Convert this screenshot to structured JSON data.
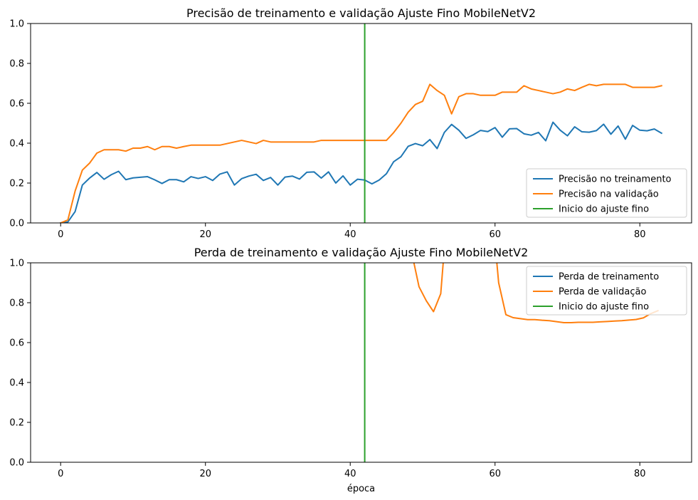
{
  "chart_data": [
    {
      "type": "line",
      "title": "Precisão de treinamento e validação Ajuste Fino MobileNetV2",
      "xlabel": "",
      "ylabel": "",
      "xlim": [
        -4.15,
        87.15
      ],
      "ylim": [
        0,
        1
      ],
      "xticks": [
        0,
        20,
        40,
        60,
        80
      ],
      "yticks": [
        0.0,
        0.2,
        0.4,
        0.6,
        0.8,
        1.0
      ],
      "xtick_labels": [
        "0",
        "20",
        "40",
        "60",
        "80"
      ],
      "ytick_labels": [
        "0.0",
        "0.2",
        "0.4",
        "0.6",
        "0.8",
        "1.0"
      ],
      "legend_position": "lower-right",
      "grid": false,
      "series": [
        {
          "name": "Precisão no treinamento",
          "color": "#1f77b4",
          "values": [
            0.0,
            0.005,
            0.057,
            0.19,
            0.225,
            0.253,
            0.219,
            0.242,
            0.259,
            0.217,
            0.226,
            0.229,
            0.232,
            0.216,
            0.198,
            0.217,
            0.217,
            0.206,
            0.232,
            0.223,
            0.232,
            0.213,
            0.245,
            0.256,
            0.19,
            0.222,
            0.235,
            0.244,
            0.213,
            0.228,
            0.19,
            0.23,
            0.235,
            0.22,
            0.254,
            0.256,
            0.225,
            0.256,
            0.2,
            0.236,
            0.19,
            0.219,
            0.215,
            0.196,
            0.215,
            0.247,
            0.307,
            0.332,
            0.384,
            0.398,
            0.387,
            0.418,
            0.373,
            0.454,
            0.494,
            0.465,
            0.424,
            0.442,
            0.464,
            0.458,
            0.478,
            0.43,
            0.472,
            0.473,
            0.447,
            0.44,
            0.454,
            0.412,
            0.505,
            0.465,
            0.437,
            0.482,
            0.457,
            0.455,
            0.463,
            0.495,
            0.445,
            0.486,
            0.42,
            0.489,
            0.465,
            0.462,
            0.471,
            0.45
          ]
        },
        {
          "name": "Precisão na validação",
          "color": "#ff7f0e",
          "values": [
            0.0,
            0.015,
            0.16,
            0.265,
            0.3,
            0.35,
            0.367,
            0.367,
            0.367,
            0.36,
            0.375,
            0.375,
            0.383,
            0.367,
            0.383,
            0.383,
            0.375,
            0.383,
            0.39,
            0.39,
            0.39,
            0.39,
            0.39,
            0.398,
            0.406,
            0.414,
            0.406,
            0.398,
            0.414,
            0.406,
            0.406,
            0.406,
            0.406,
            0.406,
            0.406,
            0.406,
            0.414,
            0.414,
            0.414,
            0.414,
            0.414,
            0.414,
            0.414,
            0.414,
            0.414,
            0.414,
            0.453,
            0.5,
            0.555,
            0.594,
            0.61,
            0.695,
            0.664,
            0.64,
            0.547,
            0.633,
            0.648,
            0.648,
            0.64,
            0.64,
            0.64,
            0.656,
            0.656,
            0.656,
            0.688,
            0.672,
            0.664,
            0.656,
            0.648,
            0.656,
            0.672,
            0.664,
            0.68,
            0.695,
            0.688,
            0.695,
            0.695,
            0.695,
            0.695,
            0.68,
            0.68,
            0.68,
            0.68,
            0.688
          ]
        },
        {
          "name": "Inicio do ajuste fino",
          "color": "#2ca02c",
          "x": [
            42,
            42
          ],
          "y": [
            0,
            1
          ]
        }
      ]
    },
    {
      "type": "line",
      "title": "Perda de treinamento e validação Ajuste Fino MobileNetV2",
      "xlabel": "época",
      "ylabel": "",
      "xlim": [
        -4.15,
        87.15
      ],
      "ylim": [
        0,
        1
      ],
      "xticks": [
        0,
        20,
        40,
        60,
        80
      ],
      "yticks": [
        0.0,
        0.2,
        0.4,
        0.6,
        0.8,
        1.0
      ],
      "xtick_labels": [
        "0",
        "20",
        "40",
        "60",
        "80"
      ],
      "ytick_labels": [
        "0.0",
        "0.2",
        "0.4",
        "0.6",
        "0.8",
        "1.0"
      ],
      "legend_position": "upper-right",
      "grid": false,
      "series": [
        {
          "name": "Perda de treinamento",
          "color": "#1f77b4",
          "x": [],
          "y": []
        },
        {
          "name": "Perda de validação",
          "color": "#ff7f0e",
          "x": [
            47.5,
            48.5,
            49.5,
            50.5,
            51.5,
            52.5,
            53.5,
            59.5,
            60.5,
            61.5,
            62.5,
            63.5,
            64.5,
            65.5,
            66.5,
            67.5,
            68.5,
            69.5,
            70.5,
            71.5,
            72.5,
            73.5,
            74.5,
            75.5,
            76.5,
            77.5,
            78.5,
            79.5,
            80.5,
            81.5,
            82.5
          ],
          "y": [
            1.3,
            1.05,
            0.88,
            0.81,
            0.755,
            0.845,
            1.3,
            1.3,
            0.9,
            0.74,
            0.725,
            0.72,
            0.715,
            0.715,
            0.712,
            0.71,
            0.705,
            0.7,
            0.7,
            0.702,
            0.702,
            0.702,
            0.704,
            0.706,
            0.708,
            0.71,
            0.713,
            0.716,
            0.724,
            0.745,
            0.76
          ]
        },
        {
          "name": "Inicio do ajuste fino",
          "color": "#2ca02c",
          "x": [
            42,
            42
          ],
          "y": [
            0,
            1
          ]
        }
      ]
    }
  ]
}
